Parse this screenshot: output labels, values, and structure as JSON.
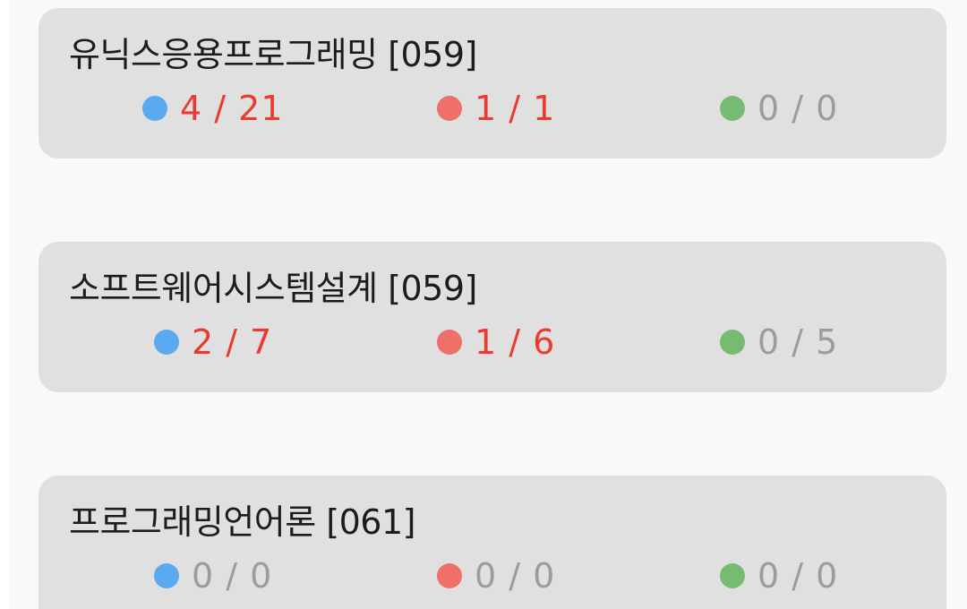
{
  "courses": [
    {
      "title": "유닉스응용프로그래밍 [059]",
      "stats": [
        {
          "dot_color": "blue",
          "text": "4 / 21",
          "state": "active"
        },
        {
          "dot_color": "red",
          "text": "1 / 1",
          "state": "active"
        },
        {
          "dot_color": "green",
          "text": "0 / 0",
          "state": "inactive"
        }
      ]
    },
    {
      "title": "소프트웨어시스템설계 [059]",
      "stats": [
        {
          "dot_color": "blue",
          "text": "2 / 7",
          "state": "active"
        },
        {
          "dot_color": "red",
          "text": "1 / 6",
          "state": "active"
        },
        {
          "dot_color": "green",
          "text": "0 / 5",
          "state": "inactive"
        }
      ]
    },
    {
      "title": "프로그래밍언어론 [061]",
      "stats": [
        {
          "dot_color": "blue",
          "text": "0 / 0",
          "state": "inactive"
        },
        {
          "dot_color": "red",
          "text": "0 / 0",
          "state": "inactive"
        },
        {
          "dot_color": "green",
          "text": "0 / 0",
          "state": "inactive"
        }
      ]
    }
  ],
  "colors": {
    "blue": "#5ba9ee",
    "red": "#ef7069",
    "green": "#77bb73",
    "active_text": "#eb3a2f",
    "inactive_text": "#9c9c9c",
    "card_bg": "#e0e0e0"
  }
}
